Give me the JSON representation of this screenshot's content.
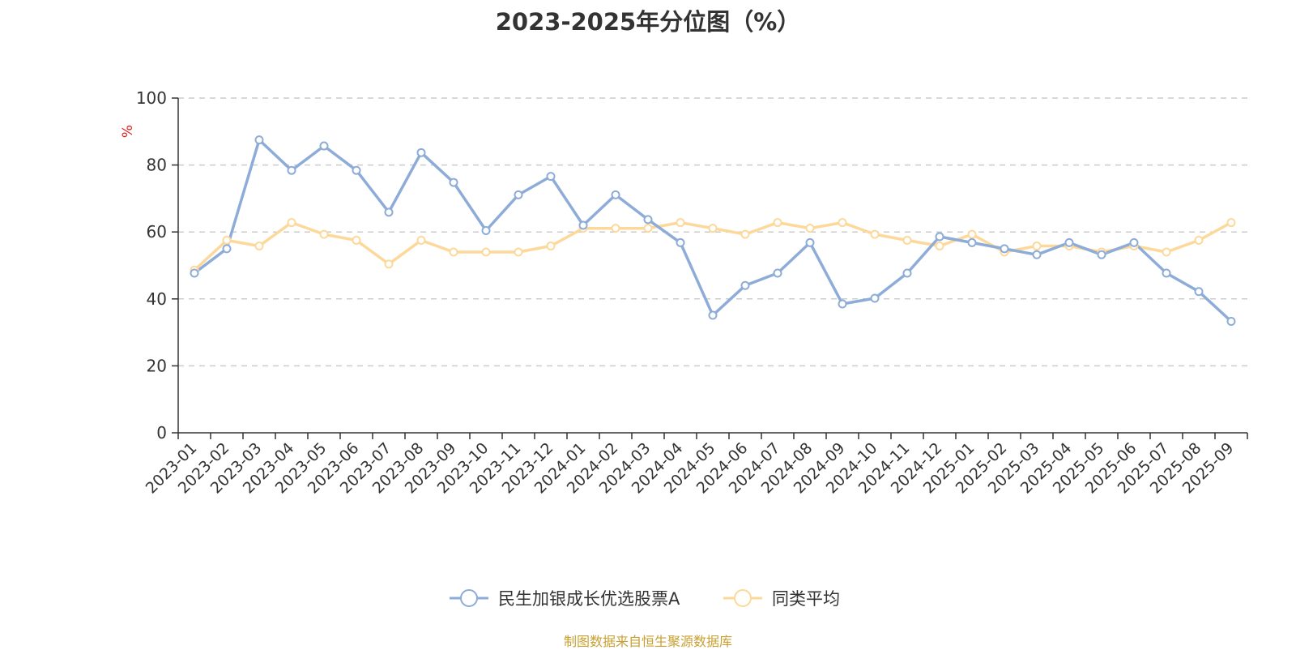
{
  "chart_data": {
    "type": "line",
    "title": "2023-2025年分位图（%）",
    "ylabel": "%",
    "xlabel": "",
    "ylim": [
      0,
      100
    ],
    "yticks": [
      0,
      20,
      40,
      60,
      80,
      100
    ],
    "grid": true,
    "legend_position": "bottom-center",
    "categories": [
      "2023-01",
      "2023-02",
      "2023-03",
      "2023-04",
      "2023-05",
      "2023-06",
      "2023-07",
      "2023-08",
      "2023-09",
      "2023-10",
      "2023-11",
      "2023-12",
      "2024-01",
      "2024-02",
      "2024-03",
      "2024-04",
      "2024-05",
      "2024-06",
      "2024-07",
      "2024-08",
      "2024-09",
      "2024-10",
      "2024-11",
      "2024-12",
      "2025-01",
      "2025-02",
      "2025-03",
      "2025-04",
      "2025-05",
      "2025-06",
      "2025-07",
      "2025-08",
      "2025-09"
    ],
    "series": [
      {
        "name": "民生加银成长优选股票A",
        "color": "#8eacd8",
        "values": [
          47.7,
          55.0,
          87.5,
          78.4,
          85.7,
          78.4,
          65.9,
          83.7,
          74.8,
          60.4,
          71.1,
          76.6,
          62.0,
          71.1,
          63.7,
          56.8,
          35.1,
          44.0,
          47.7,
          56.8,
          38.5,
          40.2,
          47.7,
          58.6,
          56.8,
          55.0,
          53.2,
          56.8,
          53.2,
          56.8,
          47.7,
          42.2,
          33.3
        ]
      },
      {
        "name": "同类平均",
        "color": "#fcd99a",
        "values": [
          48.6,
          57.5,
          55.8,
          62.8,
          59.3,
          57.5,
          50.4,
          57.5,
          54.0,
          54.0,
          54.0,
          55.8,
          61.1,
          61.1,
          61.1,
          62.8,
          61.1,
          59.3,
          62.8,
          61.1,
          62.8,
          59.3,
          57.5,
          55.8,
          59.3,
          54.0,
          55.8,
          55.8,
          54.0,
          55.8,
          54.0,
          57.5,
          62.8
        ]
      }
    ]
  },
  "source_note": "制图数据来自恒生聚源数据库"
}
